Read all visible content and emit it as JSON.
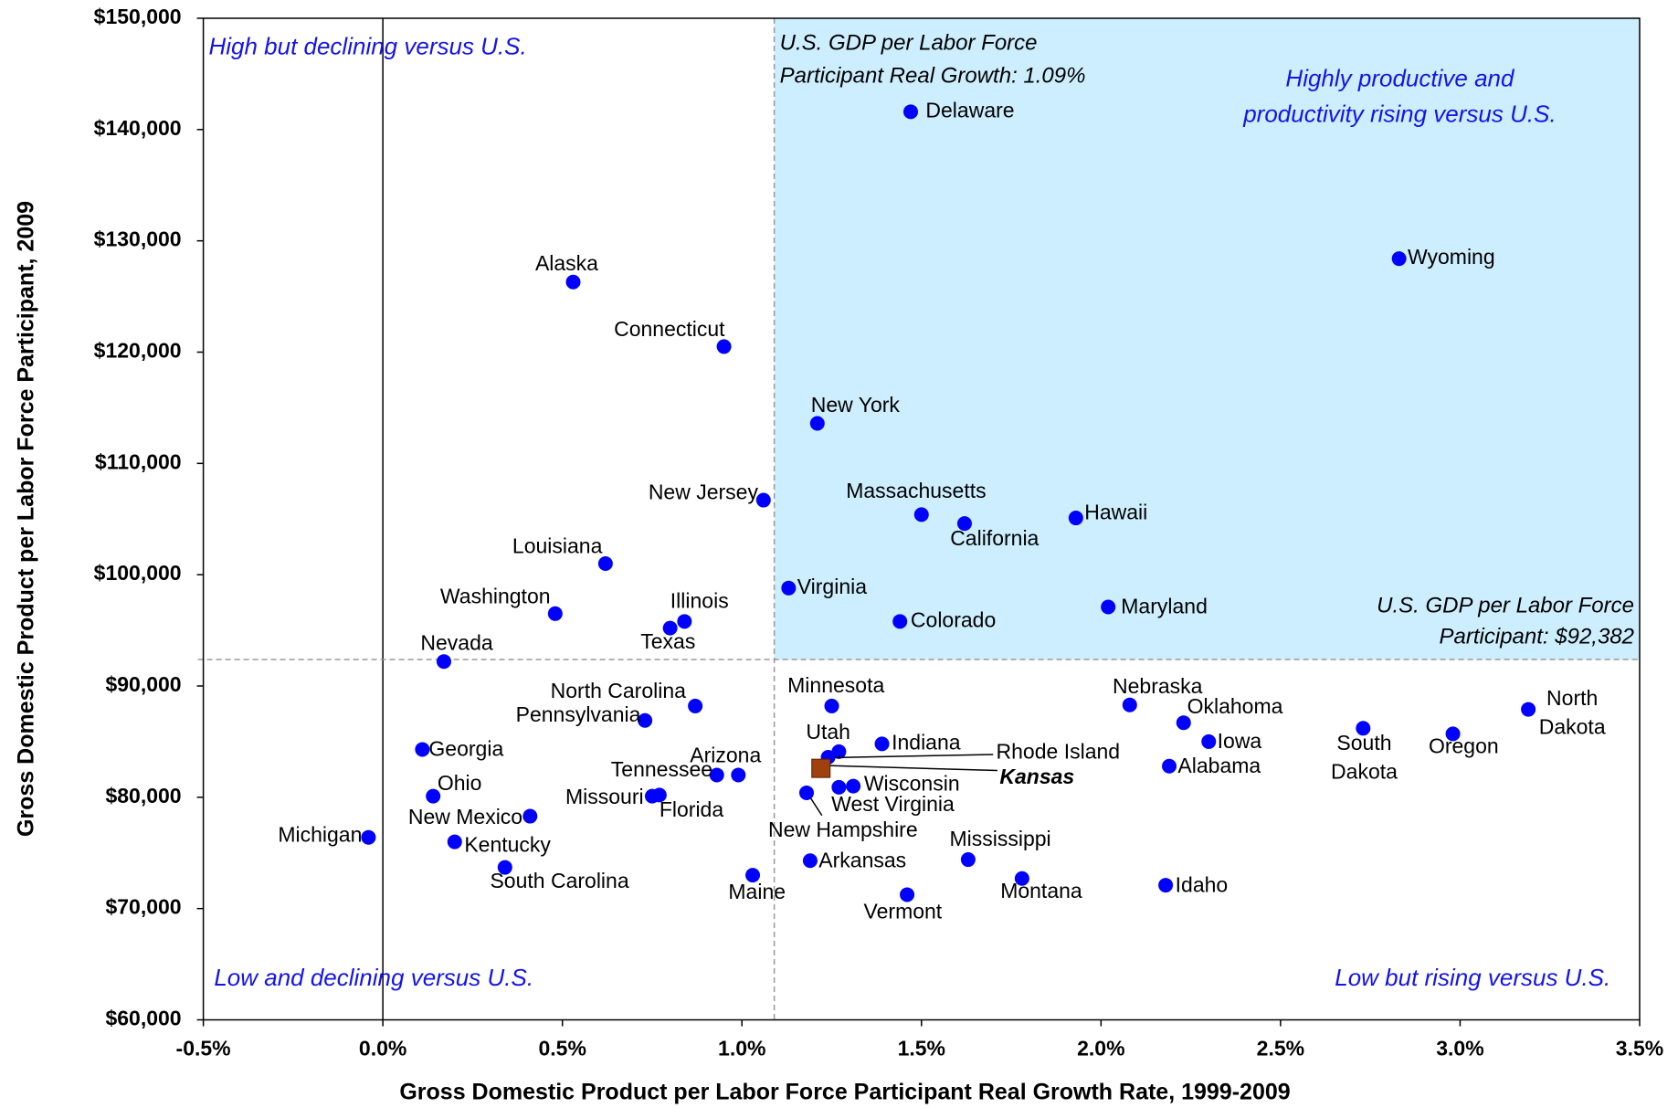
{
  "chart_data": {
    "type": "scatter",
    "x_label": "Gross Domestic Product per Labor Force Participant Real Growth Rate, 1999-2009",
    "y_label": "Gross Domestic Product per Labor Force Participant, 2009",
    "xlim": [
      -0.5,
      3.5
    ],
    "ylim": [
      60000,
      150000
    ],
    "xticks": [
      {
        "value": -0.5,
        "label": "-0.5%"
      },
      {
        "value": 0,
        "label": "0.0%"
      },
      {
        "value": 0.5,
        "label": "0.5%"
      },
      {
        "value": 1.0,
        "label": "1.0%"
      },
      {
        "value": 1.5,
        "label": "1.5%"
      },
      {
        "value": 2.0,
        "label": "2.0%"
      },
      {
        "value": 2.5,
        "label": "2.5%"
      },
      {
        "value": 3.0,
        "label": "3.0%"
      },
      {
        "value": 3.5,
        "label": "3.5%"
      }
    ],
    "yticks": [
      {
        "value": 60000,
        "label": "$60,000"
      },
      {
        "value": 70000,
        "label": "$70,000"
      },
      {
        "value": 80000,
        "label": "$80,000"
      },
      {
        "value": 90000,
        "label": "$90,000"
      },
      {
        "value": 100000,
        "label": "$100,000"
      },
      {
        "value": 110000,
        "label": "$110,000"
      },
      {
        "value": 120000,
        "label": "$120,000"
      },
      {
        "value": 130000,
        "label": "$130,000"
      },
      {
        "value": 140000,
        "label": "$140,000"
      },
      {
        "value": 150000,
        "label": "$150,000"
      }
    ],
    "color": "#0000ff",
    "labels": [
      "Delaware",
      "Wyoming",
      "Alaska",
      "Connecticut",
      "New York",
      "New Jersey",
      "Massachusetts",
      "California",
      "Hawaii",
      "Louisiana",
      "Virginia",
      "Washington",
      "Illinois",
      "Texas",
      "Colorado",
      "Maryland",
      "Nevada",
      "North Carolina",
      "Pennsylvania",
      "Minnesota",
      "Nebraska",
      "Oklahoma",
      "North Dakota",
      "South Dakota",
      "Oregon",
      "Iowa",
      "Georgia",
      "Indiana",
      "Utah",
      "Rhode Island",
      "Alabama",
      "Tennessee",
      "Arizona",
      "Wisconsin",
      "West Virginia",
      "New Hampshire",
      "Ohio",
      "Missouri",
      "Florida",
      "New Mexico",
      "Michigan",
      "Kentucky",
      "South Carolina",
      "Arkansas",
      "Mississippi",
      "Maine",
      "Montana",
      "Idaho",
      "Vermont"
    ],
    "x": [
      1.47,
      2.83,
      0.53,
      0.95,
      1.21,
      1.06,
      1.5,
      1.62,
      1.93,
      0.62,
      1.13,
      0.48,
      0.84,
      0.8,
      1.44,
      2.02,
      0.17,
      0.87,
      0.73,
      1.25,
      2.08,
      2.23,
      3.19,
      2.73,
      2.98,
      2.3,
      0.11,
      1.39,
      1.27,
      1.24,
      2.19,
      0.93,
      0.99,
      1.31,
      1.27,
      1.18,
      0.14,
      0.75,
      0.77,
      0.41,
      -0.04,
      0.2,
      0.34,
      1.19,
      1.63,
      1.03,
      1.78,
      2.18,
      1.46
    ],
    "y": [
      141600,
      128400,
      126300,
      120500,
      113600,
      106700,
      105400,
      104600,
      105100,
      101000,
      98800,
      96500,
      95800,
      95200,
      95800,
      97100,
      92200,
      88200,
      86900,
      88200,
      88300,
      86700,
      87900,
      86200,
      85700,
      85000,
      84300,
      84800,
      84100,
      83600,
      82800,
      82000,
      82000,
      81000,
      80900,
      80400,
      80100,
      80100,
      80200,
      78300,
      76400,
      76000,
      73700,
      74300,
      74400,
      73000,
      72700,
      72100,
      71250
    ],
    "highlight_point": {
      "label": "Kansas",
      "x": 1.22,
      "y": 82600,
      "color": "#a0400f",
      "marker": "square"
    },
    "x_reference": {
      "value": 1.09,
      "label": [
        "U.S. GDP per Labor Force",
        "Participant Real Growth: 1.09%"
      ]
    },
    "y_reference": {
      "value": 92382,
      "label": [
        "U.S. GDP per Labor Force",
        "Participant: $92,382"
      ]
    },
    "shade_color": "#cdeefe",
    "quadrant_color": "#1414e6",
    "quadrant_labels": {
      "top_left": [
        "High but declining versus U.S."
      ],
      "top_right": [
        "Highly productive and",
        "productivity rising versus U.S."
      ],
      "bottom_left": [
        "Low and declining versus U.S."
      ],
      "bottom_right": [
        "Low but rising versus U.S."
      ]
    }
  }
}
